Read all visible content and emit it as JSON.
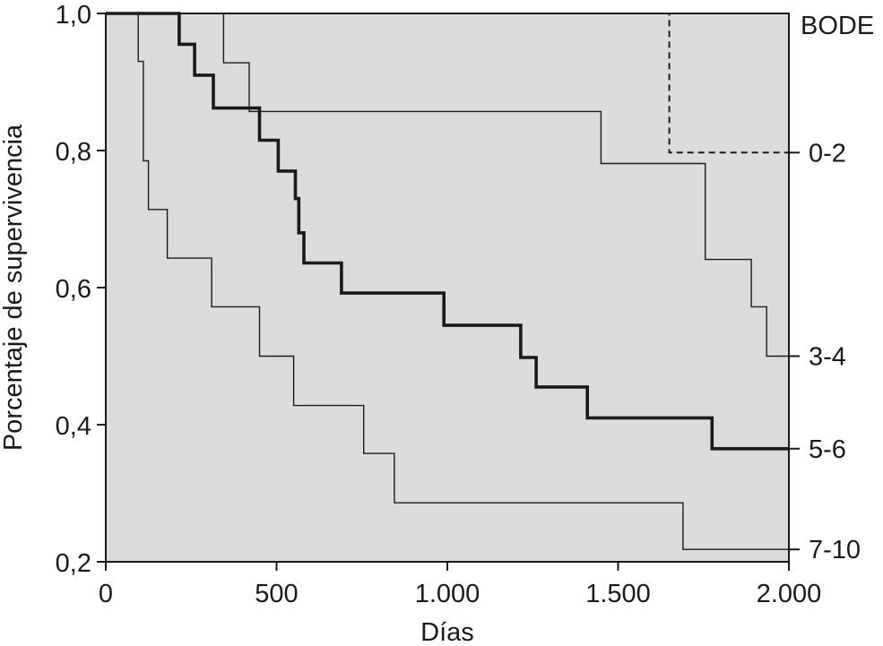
{
  "chart_data": {
    "type": "line",
    "step": true,
    "xlabel": "Días",
    "ylabel": "Porcentaje de supervivencia",
    "xlim": [
      0,
      2000
    ],
    "ylim": [
      0.2,
      1.0
    ],
    "x_ticks": [
      0,
      500,
      1000,
      1500,
      2000
    ],
    "x_tick_labels": [
      "0",
      "500",
      "1.000",
      "1.500",
      "2.000"
    ],
    "y_ticks": [
      0.2,
      0.4,
      0.6,
      0.8,
      1.0
    ],
    "y_tick_labels": [
      "0,2",
      "0,4",
      "0,6",
      "0,8",
      "1,0"
    ],
    "legend_title": "BODE",
    "grid": false,
    "plot_background": "#dcdcdc",
    "series": [
      {
        "name": "0-2",
        "style": "dashed",
        "color": "#1a1a1a",
        "points": [
          [
            0,
            1.0
          ],
          [
            1650,
            1.0
          ],
          [
            1650,
            0.797
          ],
          [
            2000,
            0.797
          ]
        ]
      },
      {
        "name": "3-4",
        "style": "thin",
        "color": "#1a1a1a",
        "points": [
          [
            0,
            1.0
          ],
          [
            345,
            1.0
          ],
          [
            345,
            0.928
          ],
          [
            420,
            0.928
          ],
          [
            420,
            0.857
          ],
          [
            1450,
            0.857
          ],
          [
            1450,
            0.781
          ],
          [
            1755,
            0.781
          ],
          [
            1755,
            0.641
          ],
          [
            1890,
            0.641
          ],
          [
            1890,
            0.572
          ],
          [
            1935,
            0.572
          ],
          [
            1935,
            0.5
          ],
          [
            2000,
            0.5
          ]
        ]
      },
      {
        "name": "5-6",
        "style": "thick",
        "color": "#1a1a1a",
        "points": [
          [
            0,
            1.0
          ],
          [
            215,
            1.0
          ],
          [
            215,
            0.955
          ],
          [
            260,
            0.955
          ],
          [
            260,
            0.91
          ],
          [
            315,
            0.91
          ],
          [
            315,
            0.862
          ],
          [
            450,
            0.862
          ],
          [
            450,
            0.815
          ],
          [
            505,
            0.815
          ],
          [
            505,
            0.77
          ],
          [
            555,
            0.77
          ],
          [
            555,
            0.73
          ],
          [
            565,
            0.73
          ],
          [
            565,
            0.68
          ],
          [
            580,
            0.68
          ],
          [
            580,
            0.636
          ],
          [
            690,
            0.636
          ],
          [
            690,
            0.592
          ],
          [
            990,
            0.592
          ],
          [
            990,
            0.545
          ],
          [
            1215,
            0.545
          ],
          [
            1215,
            0.498
          ],
          [
            1260,
            0.498
          ],
          [
            1260,
            0.455
          ],
          [
            1410,
            0.455
          ],
          [
            1410,
            0.41
          ],
          [
            1775,
            0.41
          ],
          [
            1775,
            0.365
          ],
          [
            2000,
            0.365
          ]
        ]
      },
      {
        "name": "7-10",
        "style": "thin",
        "color": "#1a1a1a",
        "points": [
          [
            0,
            1.0
          ],
          [
            95,
            1.0
          ],
          [
            95,
            0.93
          ],
          [
            110,
            0.93
          ],
          [
            110,
            0.785
          ],
          [
            125,
            0.785
          ],
          [
            125,
            0.714
          ],
          [
            180,
            0.714
          ],
          [
            180,
            0.643
          ],
          [
            310,
            0.643
          ],
          [
            310,
            0.572
          ],
          [
            450,
            0.572
          ],
          [
            450,
            0.5
          ],
          [
            550,
            0.5
          ],
          [
            550,
            0.428
          ],
          [
            755,
            0.428
          ],
          [
            755,
            0.358
          ],
          [
            845,
            0.358
          ],
          [
            845,
            0.286
          ],
          [
            1690,
            0.286
          ],
          [
            1690,
            0.218
          ],
          [
            2000,
            0.218
          ]
        ]
      }
    ]
  }
}
